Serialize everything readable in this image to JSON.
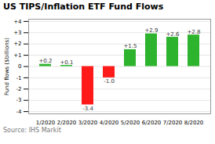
{
  "chart_data": {
    "type": "bar",
    "title": "US TIPS/Inflation ETF Fund Flows",
    "categories": [
      "1/2020",
      "2/2020",
      "3/2020",
      "4/2020",
      "5/2020",
      "6/2020",
      "7/2020",
      "8/2020"
    ],
    "values": [
      0.2,
      0.1,
      -3.4,
      -1.0,
      1.5,
      2.9,
      2.6,
      2.8
    ],
    "value_labels": [
      "+0.2",
      "+0.1",
      "-3.4",
      "-1.0",
      "+1.5",
      "+2.9",
      "+2.6",
      "+2.8"
    ],
    "colors": [
      "#2db32d",
      "#2db32d",
      "#ff1a1a",
      "#ff1a1a",
      "#2db32d",
      "#2db32d",
      "#2db32d",
      "#2db32d"
    ],
    "ylabel": "Fund flows ($billions)",
    "ylim": [
      -4.2,
      4.2
    ],
    "yticks": [
      -4,
      -3,
      -2,
      -1,
      0,
      {
        "value": 1,
        "label": "+1"
      },
      {
        "value": 2,
        "label": "+2"
      },
      {
        "value": 3,
        "label": "+3"
      },
      {
        "value": 4,
        "label": "+4"
      }
    ],
    "grid": true,
    "data_labels": true,
    "annotations": [
      "Source: IHS Markit"
    ]
  }
}
